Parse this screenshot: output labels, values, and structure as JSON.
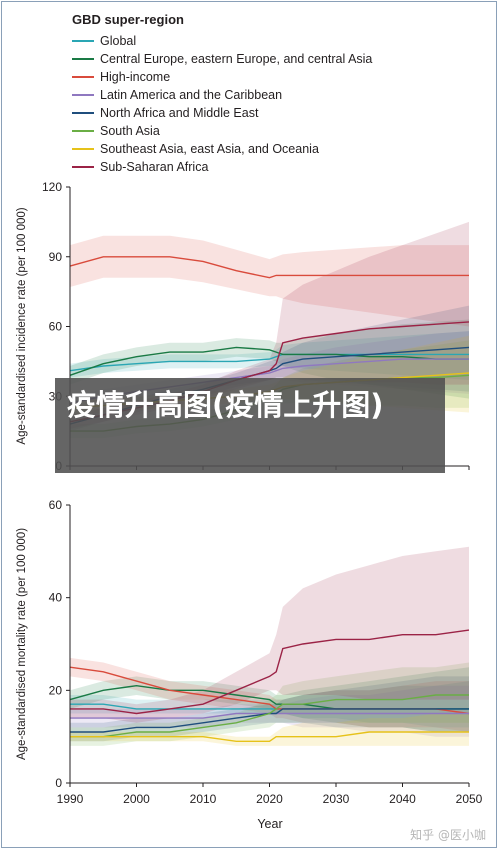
{
  "legend": {
    "title": "GBD super-region",
    "items": [
      {
        "label": "Global",
        "color": "#2aa6b4"
      },
      {
        "label": "Central Europe, eastern Europe, and central Asia",
        "color": "#1a7a45"
      },
      {
        "label": "High-income",
        "color": "#d94b3c"
      },
      {
        "label": "Latin America and the Caribbean",
        "color": "#8f78c0"
      },
      {
        "label": "North Africa and Middle East",
        "color": "#1f4e7d"
      },
      {
        "label": "South Asia",
        "color": "#6aae45"
      },
      {
        "label": "Southeast Asia, east Asia, and Oceania",
        "color": "#e6c21a"
      },
      {
        "label": "Sub-Saharan Africa",
        "color": "#9b2346"
      }
    ]
  },
  "overlay_text": "疫情升高图(疫情上升图)",
  "watermark": "知乎 @医小咖",
  "chart_data": [
    {
      "type": "line",
      "ylabel": "Age-standardised incidence rate (per 100 000)",
      "ylim": [
        0,
        120
      ],
      "yticks": [
        0,
        30,
        60,
        90,
        120
      ],
      "xlim": [
        1990,
        2050
      ],
      "x": [
        1990,
        1995,
        2000,
        2005,
        2010,
        2015,
        2020,
        2021,
        2022,
        2025,
        2030,
        2035,
        2040,
        2045,
        2050
      ],
      "series": [
        {
          "name": "Global",
          "values": [
            41,
            43,
            44,
            45,
            45,
            45,
            46,
            47,
            48,
            48,
            48,
            48,
            48,
            48,
            48
          ],
          "lower": [
            38,
            40,
            41,
            42,
            42,
            42,
            43,
            43,
            43,
            42,
            41,
            40,
            39,
            38,
            37
          ],
          "upper": [
            44,
            46,
            47,
            48,
            48,
            48,
            49,
            50,
            52,
            53,
            54,
            55,
            56,
            57,
            58
          ]
        },
        {
          "name": "Central Europe, eastern Europe, and central Asia",
          "values": [
            39,
            44,
            47,
            49,
            49,
            51,
            50,
            49,
            48,
            48,
            48,
            47,
            47,
            46,
            46
          ],
          "lower": [
            35,
            40,
            43,
            45,
            45,
            47,
            46,
            45,
            43,
            40,
            37,
            35,
            33,
            31,
            29
          ],
          "upper": [
            43,
            48,
            51,
            53,
            53,
            55,
            54,
            53,
            53,
            55,
            57,
            59,
            61,
            62,
            63
          ]
        },
        {
          "name": "High-income",
          "values": [
            86,
            90,
            90,
            90,
            88,
            84,
            81,
            82,
            82,
            82,
            82,
            82,
            82,
            82,
            82
          ],
          "lower": [
            77,
            81,
            81,
            81,
            79,
            76,
            73,
            73,
            72,
            70,
            68,
            66,
            64,
            62,
            60
          ],
          "upper": [
            95,
            99,
            99,
            99,
            97,
            93,
            89,
            90,
            91,
            92,
            93,
            94,
            95,
            95,
            95
          ]
        },
        {
          "name": "Latin America and the Caribbean",
          "values": [
            27,
            30,
            32,
            34,
            36,
            38,
            40,
            41,
            42,
            43,
            44,
            45,
            46,
            46,
            46
          ],
          "lower": [
            24,
            27,
            29,
            31,
            33,
            35,
            37,
            37,
            37,
            36,
            35,
            34,
            33,
            32,
            31
          ],
          "upper": [
            30,
            33,
            35,
            37,
            39,
            41,
            43,
            44,
            46,
            48,
            51,
            53,
            55,
            57,
            58
          ]
        },
        {
          "name": "North Africa and Middle East",
          "values": [
            18,
            22,
            26,
            30,
            33,
            37,
            41,
            42,
            44,
            46,
            47,
            48,
            49,
            50,
            51
          ],
          "lower": [
            15,
            19,
            23,
            27,
            30,
            34,
            37,
            38,
            38,
            37,
            36,
            35,
            34,
            33,
            32
          ],
          "upper": [
            21,
            25,
            29,
            33,
            36,
            40,
            45,
            46,
            49,
            53,
            57,
            60,
            63,
            66,
            69
          ]
        },
        {
          "name": "South Asia",
          "values": [
            15,
            15,
            17,
            18,
            20,
            24,
            29,
            31,
            33,
            35,
            36,
            37,
            38,
            38,
            39
          ],
          "lower": [
            12,
            12,
            14,
            15,
            17,
            20,
            25,
            26,
            27,
            27,
            27,
            26,
            26,
            25,
            25
          ],
          "upper": [
            18,
            18,
            20,
            21,
            23,
            28,
            33,
            35,
            38,
            42,
            45,
            48,
            50,
            52,
            54
          ]
        },
        {
          "name": "Southeast Asia, east Asia, and Oceania",
          "values": [
            25,
            26,
            27,
            28,
            29,
            30,
            32,
            33,
            34,
            35,
            36,
            37,
            38,
            39,
            40
          ],
          "lower": [
            22,
            23,
            24,
            25,
            26,
            27,
            29,
            29,
            29,
            28,
            27,
            26,
            25,
            24,
            23
          ],
          "upper": [
            28,
            29,
            30,
            31,
            32,
            33,
            35,
            36,
            38,
            41,
            44,
            47,
            50,
            53,
            56
          ]
        },
        {
          "name": "Sub-Saharan Africa",
          "values": [
            19,
            22,
            25,
            28,
            32,
            37,
            41,
            44,
            53,
            55,
            57,
            59,
            60,
            61,
            62
          ],
          "lower": [
            16,
            19,
            22,
            25,
            29,
            33,
            37,
            38,
            38,
            37,
            37,
            36,
            36,
            35,
            35
          ],
          "upper": [
            22,
            25,
            28,
            31,
            35,
            41,
            46,
            53,
            72,
            78,
            84,
            90,
            95,
            100,
            105
          ]
        }
      ]
    },
    {
      "type": "line",
      "xlabel": "Year",
      "ylabel": "Age-standardised mortality rate (per 100 000)",
      "ylim": [
        0,
        60
      ],
      "yticks": [
        0,
        20,
        40,
        60
      ],
      "xlim": [
        1990,
        2050
      ],
      "xticks": [
        1990,
        2000,
        2010,
        2020,
        2030,
        2040,
        2050
      ],
      "x": [
        1990,
        1995,
        2000,
        2005,
        2010,
        2015,
        2020,
        2021,
        2022,
        2025,
        2030,
        2035,
        2040,
        2045,
        2050
      ],
      "series": [
        {
          "name": "Global",
          "values": [
            17,
            17,
            16,
            16,
            16,
            16,
            16,
            16,
            16,
            16,
            16,
            16,
            16,
            16,
            16
          ],
          "lower": [
            15,
            15,
            15,
            15,
            15,
            15,
            15,
            15,
            15,
            14,
            14,
            13,
            13,
            12,
            12
          ],
          "upper": [
            19,
            19,
            18,
            18,
            18,
            18,
            18,
            18,
            18,
            19,
            20,
            20,
            21,
            21,
            22
          ]
        },
        {
          "name": "Central Europe, eastern Europe, and central Asia",
          "values": [
            18,
            20,
            21,
            20,
            20,
            19,
            18,
            17,
            17,
            17,
            16,
            16,
            16,
            16,
            16
          ],
          "lower": [
            16,
            18,
            19,
            18,
            18,
            17,
            16,
            15,
            15,
            14,
            13,
            12,
            12,
            11,
            11
          ],
          "upper": [
            20,
            22,
            23,
            22,
            22,
            21,
            20,
            19,
            19,
            20,
            21,
            22,
            23,
            24,
            25
          ]
        },
        {
          "name": "High-income",
          "values": [
            25,
            24,
            22,
            20,
            19,
            18,
            17,
            16,
            16,
            16,
            16,
            16,
            16,
            16,
            15
          ],
          "lower": [
            23,
            22,
            20,
            18,
            17,
            16,
            15,
            14,
            14,
            13,
            13,
            12,
            12,
            12,
            11
          ],
          "upper": [
            27,
            26,
            24,
            22,
            21,
            20,
            19,
            18,
            18,
            19,
            20,
            20,
            21,
            22,
            22
          ]
        },
        {
          "name": "Latin America and the Caribbean",
          "values": [
            14,
            14,
            14,
            14,
            14,
            15,
            15,
            15,
            15,
            15,
            15,
            15,
            15,
            15,
            15
          ],
          "lower": [
            12,
            12,
            12,
            12,
            12,
            13,
            13,
            13,
            13,
            12,
            12,
            11,
            11,
            10,
            10
          ],
          "upper": [
            16,
            16,
            16,
            16,
            16,
            17,
            17,
            17,
            17,
            18,
            19,
            19,
            20,
            21,
            21
          ]
        },
        {
          "name": "North Africa and Middle East",
          "values": [
            11,
            11,
            12,
            12,
            13,
            14,
            15,
            15,
            16,
            16,
            16,
            16,
            16,
            16,
            16
          ],
          "lower": [
            9,
            9,
            10,
            10,
            11,
            12,
            13,
            13,
            13,
            13,
            12,
            12,
            12,
            11,
            11
          ],
          "upper": [
            13,
            13,
            14,
            14,
            15,
            16,
            17,
            17,
            18,
            19,
            20,
            21,
            22,
            23,
            23
          ]
        },
        {
          "name": "South Asia",
          "values": [
            10,
            10,
            11,
            11,
            12,
            13,
            15,
            16,
            17,
            17,
            18,
            18,
            18,
            19,
            19
          ],
          "lower": [
            8,
            8,
            9,
            9,
            10,
            11,
            12,
            13,
            13,
            13,
            13,
            13,
            13,
            13,
            13
          ],
          "upper": [
            12,
            12,
            13,
            13,
            14,
            15,
            18,
            19,
            21,
            22,
            23,
            24,
            25,
            25,
            26
          ]
        },
        {
          "name": "Southeast Asia, east Asia, and Oceania",
          "values": [
            10,
            10,
            10,
            10,
            10,
            9,
            9,
            10,
            10,
            10,
            10,
            11,
            11,
            11,
            11
          ],
          "lower": [
            9,
            9,
            9,
            9,
            9,
            8,
            8,
            8,
            8,
            8,
            8,
            8,
            8,
            8,
            8
          ],
          "upper": [
            11,
            11,
            11,
            11,
            11,
            10,
            10,
            11,
            12,
            13,
            13,
            14,
            14,
            15,
            15
          ]
        },
        {
          "name": "Sub-Saharan Africa",
          "values": [
            16,
            16,
            15,
            16,
            17,
            20,
            23,
            24,
            29,
            30,
            31,
            31,
            32,
            32,
            33
          ],
          "lower": [
            14,
            14,
            13,
            14,
            15,
            17,
            20,
            20,
            19,
            19,
            19,
            18,
            18,
            18,
            18
          ],
          "upper": [
            18,
            18,
            17,
            18,
            20,
            24,
            28,
            32,
            38,
            42,
            45,
            47,
            49,
            50,
            51
          ]
        }
      ]
    }
  ]
}
